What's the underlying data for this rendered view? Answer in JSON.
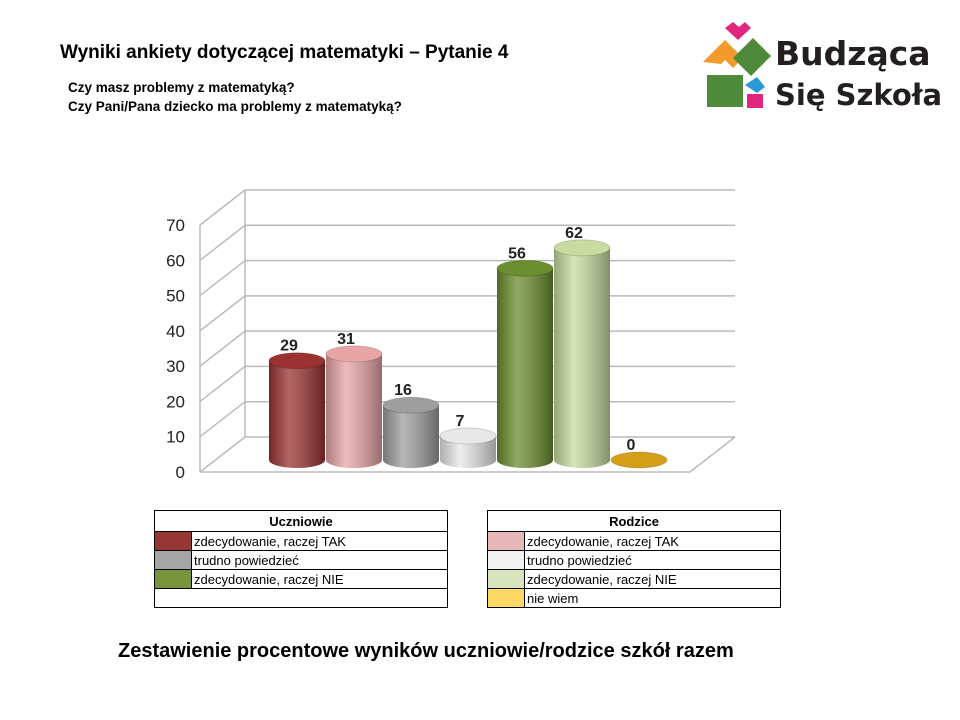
{
  "header": {
    "title": "Wyniki ankiety dotyczącej matematyki – Pytanie 4",
    "question1": "Czy masz problemy z matematyką?",
    "question2": "Czy Pani/Pana dziecko ma problemy z matematyką?"
  },
  "logo": {
    "line1": "Budząca",
    "line2": "Się Szkoła"
  },
  "footer": "Zestawienie procentowe wyników uczniowie/rodzice szkół razem",
  "chart_data": {
    "type": "bar",
    "style": "3d-cylinder",
    "categories": [
      "Uczniowie: zdecydowanie, raczej TAK",
      "Rodzice: zdecydowanie, raczej TAK",
      "Uczniowie: trudno powiedzieć",
      "Rodzice: trudno powiedzieć",
      "Uczniowie: zdecydowanie, raczej NIE",
      "Rodzice: zdecydowanie, raczej NIE",
      "Rodzice: nie wiem"
    ],
    "values": [
      29,
      31,
      16,
      7,
      56,
      62,
      0
    ],
    "colors": [
      "#9b3232",
      "#e8a5a5",
      "#9e9e9e",
      "#e8e8e8",
      "#6b8e2e",
      "#c8dca0",
      "#d4a017"
    ],
    "ylim": [
      0,
      70
    ],
    "yticks": [
      "0",
      "10",
      "20",
      "30",
      "40",
      "50",
      "60",
      "70"
    ],
    "grid": true
  },
  "legend": {
    "students": {
      "title": "Uczniowie",
      "items": [
        {
          "label": "zdecydowanie, raczej TAK",
          "color": "#953735"
        },
        {
          "label": "trudno powiedzieć",
          "color": "#a6a6a6"
        },
        {
          "label": "zdecydowanie, raczej NIE",
          "color": "#77933c"
        }
      ]
    },
    "parents": {
      "title": "Rodzice",
      "items": [
        {
          "label": "zdecydowanie, raczej TAK",
          "color": "#e6b9b8"
        },
        {
          "label": "trudno powiedzieć",
          "color": "#f2f2f2"
        },
        {
          "label": "zdecydowanie, raczej NIE",
          "color": "#d7e4bd"
        },
        {
          "label": "nie wiem",
          "color": "#ffd966"
        }
      ]
    }
  }
}
